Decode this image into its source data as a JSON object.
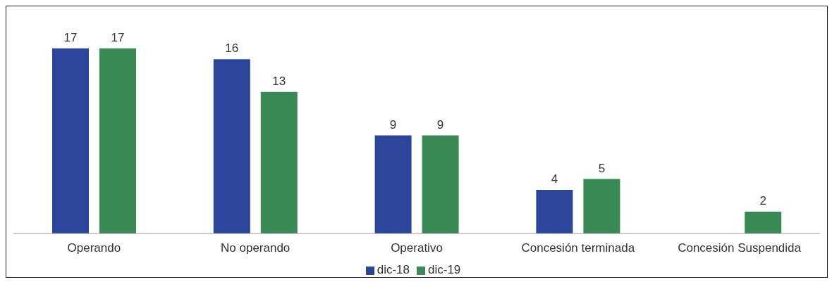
{
  "chart_data": {
    "type": "bar",
    "categories": [
      "Operando",
      "No operando",
      "Operativo",
      "Concesión terminada",
      "Concesión Suspendida"
    ],
    "series": [
      {
        "name": "dic-18",
        "color": "#2a4599",
        "values": [
          17,
          16,
          9,
          4,
          null
        ]
      },
      {
        "name": "dic-19",
        "color": "#3a8a56",
        "values": [
          17,
          13,
          9,
          5,
          2
        ]
      }
    ],
    "data_labels": true,
    "legend": "bottom",
    "grid": false
  }
}
